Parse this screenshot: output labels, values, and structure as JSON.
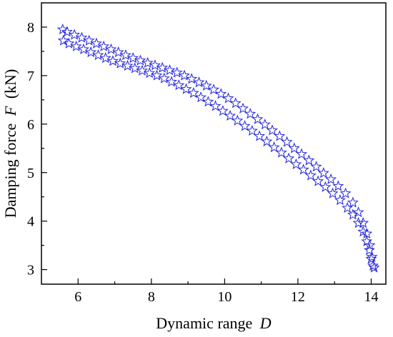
{
  "chart_data": {
    "type": "scatter",
    "title": "",
    "xlabel": "Dynamic range",
    "xlabel_var": "D",
    "ylabel": "Damping force",
    "ylabel_var": "F",
    "ylabel_unit": "(kN)",
    "xlim": [
      5.0,
      14.4
    ],
    "ylim": [
      2.7,
      8.5
    ],
    "xticks": [
      6,
      8,
      10,
      12,
      14
    ],
    "yticks": [
      3,
      4,
      5,
      6,
      7,
      8
    ],
    "grid": false,
    "legend": "none",
    "marker": "star-open",
    "color": "#2222dd",
    "series": [
      {
        "name": "",
        "x": [
          5.6,
          5.75,
          5.95,
          6.15,
          6.35,
          6.55,
          6.75,
          6.95,
          7.15,
          7.35,
          7.55,
          7.75,
          7.95,
          8.15,
          8.35,
          8.55,
          8.75,
          8.95,
          9.15,
          9.35,
          9.55,
          9.75,
          9.95,
          10.15,
          10.35,
          10.55,
          10.75,
          10.95,
          11.15,
          11.35,
          11.55,
          11.75,
          11.95,
          12.15,
          12.35,
          12.55,
          12.75,
          12.95,
          13.15,
          13.35,
          13.5,
          13.65,
          13.78,
          13.88,
          13.95,
          14.0,
          14.05,
          14.08,
          14.02,
          13.96,
          13.88,
          13.78,
          13.65,
          13.5,
          13.3,
          13.1,
          12.9,
          12.7,
          12.5,
          12.3,
          12.1,
          11.9,
          11.7,
          11.5,
          11.3,
          11.1,
          10.9,
          10.7,
          10.5,
          10.3,
          10.1,
          9.9,
          9.7,
          9.5,
          9.3,
          9.1,
          8.9,
          8.7,
          8.5,
          8.3,
          8.1,
          7.9,
          7.7,
          7.5,
          7.3,
          7.1,
          6.9,
          6.7,
          6.5,
          6.3,
          6.1,
          5.9,
          5.7,
          5.58
        ],
        "y": [
          7.72,
          7.66,
          7.6,
          7.54,
          7.48,
          7.42,
          7.36,
          7.3,
          7.25,
          7.2,
          7.15,
          7.1,
          7.05,
          7.0,
          6.94,
          6.87,
          6.8,
          6.72,
          6.64,
          6.55,
          6.46,
          6.37,
          6.27,
          6.17,
          6.07,
          5.96,
          5.86,
          5.75,
          5.64,
          5.52,
          5.41,
          5.29,
          5.17,
          5.06,
          4.94,
          4.82,
          4.7,
          4.57,
          4.43,
          4.27,
          4.13,
          3.96,
          3.78,
          3.58,
          3.4,
          3.22,
          3.08,
          3.04,
          3.26,
          3.5,
          3.74,
          3.96,
          4.18,
          4.38,
          4.57,
          4.72,
          4.86,
          4.99,
          5.12,
          5.25,
          5.38,
          5.5,
          5.63,
          5.75,
          5.87,
          5.99,
          6.1,
          6.21,
          6.32,
          6.43,
          6.53,
          6.62,
          6.71,
          6.79,
          6.86,
          6.93,
          7.0,
          7.06,
          7.11,
          7.16,
          7.21,
          7.26,
          7.31,
          7.36,
          7.42,
          7.48,
          7.54,
          7.6,
          7.66,
          7.72,
          7.78,
          7.84,
          7.9,
          7.95
        ]
      }
    ]
  }
}
